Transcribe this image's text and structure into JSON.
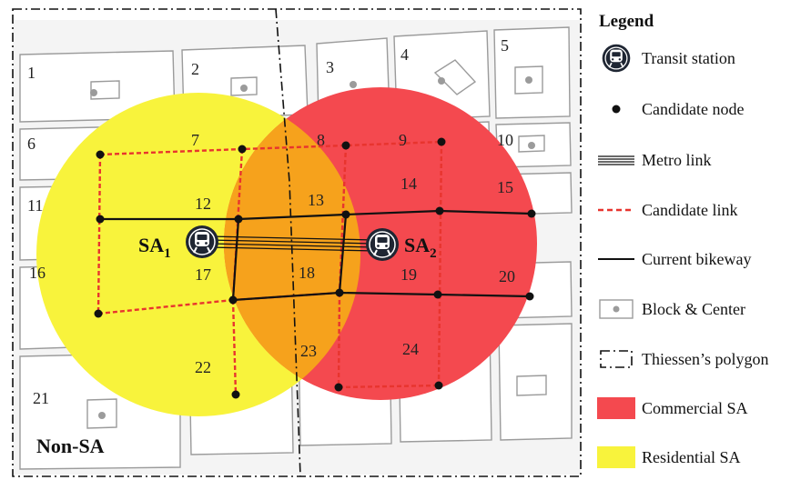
{
  "blocks": [
    {
      "label": "1"
    },
    {
      "label": "2"
    },
    {
      "label": "3"
    },
    {
      "label": "4"
    },
    {
      "label": "5"
    },
    {
      "label": "6"
    },
    {
      "label": "7"
    },
    {
      "label": "8"
    },
    {
      "label": "9"
    },
    {
      "label": "10"
    },
    {
      "label": "11"
    },
    {
      "label": "12"
    },
    {
      "label": "13"
    },
    {
      "label": "14"
    },
    {
      "label": "15"
    },
    {
      "label": "16"
    },
    {
      "label": "17"
    },
    {
      "label": "18"
    },
    {
      "label": "19"
    },
    {
      "label": "20"
    },
    {
      "label": "21"
    },
    {
      "label": "22"
    },
    {
      "label": "23"
    },
    {
      "label": "24"
    }
  ],
  "stations": {
    "sa1": {
      "main": "SA",
      "sub": "1"
    },
    "sa2": {
      "main": "SA",
      "sub": "2"
    }
  },
  "non_sa_label": "Non-SA",
  "colors": {
    "commercial_sa": "#f4494f",
    "residential_sa": "#f8f33c",
    "overlap": "#f6a21c",
    "candidate_link": "#e8342e",
    "current_bikeway": "#111111",
    "block_outline": "#9b9b9b"
  },
  "legend": {
    "title": "Legend",
    "items": [
      {
        "icon": "transit-station-icon",
        "label": "Transit station"
      },
      {
        "icon": "candidate-node-icon",
        "label": "Candidate node"
      },
      {
        "icon": "metro-link-icon",
        "label": "Metro link"
      },
      {
        "icon": "candidate-link-icon",
        "label": "Candidate link"
      },
      {
        "icon": "current-bikeway-icon",
        "label": "Current bikeway"
      },
      {
        "icon": "block-center-icon",
        "label": "Block & Center"
      },
      {
        "icon": "thiessen-polygon-icon",
        "label": "Thiessen’s polygon"
      },
      {
        "icon": "commercial-sa-swatch",
        "label": "Commercial SA"
      },
      {
        "icon": "residential-sa-swatch",
        "label": "Residential SA"
      }
    ]
  }
}
